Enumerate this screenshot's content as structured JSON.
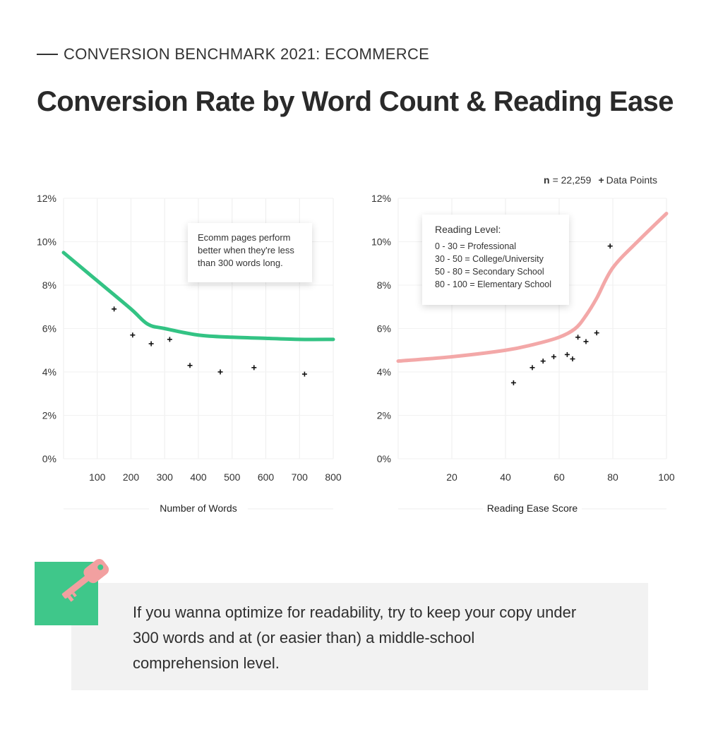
{
  "header": {
    "kicker": "CONVERSION BENCHMARK 2021: ECOMMERCE",
    "title": "Conversion Rate by Word Count & Reading Ease"
  },
  "legend": {
    "n_label": "n",
    "n_value": "= 22,259",
    "marker": "+",
    "points_label": "Data Points"
  },
  "annotations": {
    "words": [
      "Ecomm pages perform",
      "better when they're less",
      "than 300 words long."
    ],
    "reading_level": {
      "heading": "Reading Level:",
      "rows": [
        "0 - 30 = Professional",
        "30 - 50 = College/University",
        "50 - 80 = Secondary School",
        "80 - 100 = Elementary School"
      ]
    }
  },
  "chart_data": [
    {
      "type": "line",
      "xlabel": "Number of Words",
      "ylabel": "",
      "xlim": [
        0,
        800
      ],
      "ylim": [
        0,
        12
      ],
      "x_ticks": [
        100,
        200,
        300,
        400,
        500,
        600,
        700,
        800
      ],
      "y_ticks": [
        "0%",
        "2%",
        "4%",
        "6%",
        "8%",
        "10%",
        "12%"
      ],
      "grid": true,
      "color": "#33c384",
      "series": [
        {
          "kind": "trend",
          "x": [
            0,
            100,
            200,
            250,
            300,
            400,
            500,
            600,
            700,
            800
          ],
          "y": [
            9.5,
            8.2,
            6.9,
            6.2,
            6.0,
            5.7,
            5.6,
            5.55,
            5.5,
            5.5
          ]
        },
        {
          "kind": "data_points",
          "x": [
            150,
            205,
            260,
            315,
            375,
            465,
            565,
            715
          ],
          "y": [
            6.9,
            5.7,
            5.3,
            5.5,
            4.3,
            4.0,
            4.2,
            3.9
          ]
        }
      ]
    },
    {
      "type": "line",
      "xlabel": "Reading Ease Score",
      "ylabel": "",
      "xlim": [
        0,
        100
      ],
      "ylim": [
        0,
        12
      ],
      "x_ticks": [
        20,
        40,
        60,
        80,
        100
      ],
      "y_ticks": [
        "0%",
        "2%",
        "4%",
        "6%",
        "8%",
        "10%",
        "12%"
      ],
      "grid": true,
      "color": "#f3a8a8",
      "series": [
        {
          "kind": "trend",
          "x": [
            0,
            20,
            40,
            50,
            60,
            66,
            70,
            74,
            80,
            90,
            100
          ],
          "y": [
            4.5,
            4.7,
            5.0,
            5.25,
            5.6,
            6.0,
            6.6,
            7.4,
            8.8,
            10.1,
            11.3
          ]
        },
        {
          "kind": "data_points",
          "x": [
            43,
            50,
            54,
            58,
            63,
            65,
            67,
            70,
            74,
            79
          ],
          "y": [
            3.5,
            4.2,
            4.5,
            4.7,
            4.8,
            4.6,
            5.6,
            5.4,
            5.8,
            9.8
          ]
        }
      ]
    }
  ],
  "tip": {
    "text": "If you wanna optimize for readability, try to keep your copy under 300 words and at (or easier than) a middle-school comprehension level.",
    "icon": "key-icon",
    "icon_bg": "#3fc78a"
  }
}
